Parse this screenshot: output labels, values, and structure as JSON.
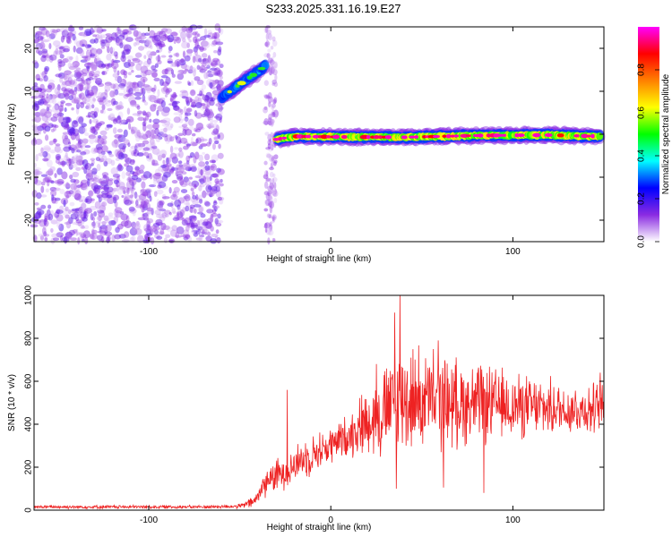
{
  "chart_data": [
    {
      "type": "heatmap",
      "title": "S233.2025.331.16.19.E27",
      "xlabel": "Height of straight line (km)",
      "ylabel": "Frequency (Hz)",
      "xlim": [
        -163,
        150
      ],
      "ylim": [
        -25,
        25
      ],
      "xticks": [
        -100,
        0,
        100
      ],
      "yticks": [
        -20,
        -10,
        0,
        10,
        20
      ],
      "colorbar": {
        "label": "Normalized spectral amplitude",
        "range": [
          0,
          1
        ],
        "ticks": [
          0.0,
          0.2,
          0.4,
          0.6,
          0.8
        ],
        "colormap": [
          "#ffffff",
          "#8a2be2",
          "#0000ff",
          "#00ffff",
          "#00ff00",
          "#ffff00",
          "#ff8000",
          "#ff0000",
          "#ff00ff"
        ]
      },
      "features": [
        {
          "name": "noise",
          "x_range": [
            -163,
            -60
          ],
          "freq_range": [
            -25,
            25
          ],
          "amplitude": 0.12
        },
        {
          "name": "rising track",
          "points": [
            [
              -60,
              8.5
            ],
            [
              -52,
              11
            ],
            [
              -46,
              12.8
            ],
            [
              -41,
              14.2
            ],
            [
              -36,
              16
            ]
          ],
          "amplitude": 0.45
        },
        {
          "name": "noise stripe",
          "x_range": [
            -36,
            -30
          ],
          "freq_range": [
            -25,
            25
          ],
          "amplitude": 0.1
        },
        {
          "name": "steady track",
          "points": [
            [
              -30,
              -1.2
            ],
            [
              -20,
              -0.5
            ],
            [
              0,
              -0.6
            ],
            [
              40,
              -0.7
            ],
            [
              80,
              -0.3
            ],
            [
              120,
              -0.2
            ],
            [
              148,
              -0.5
            ]
          ],
          "amplitude": 0.85
        }
      ]
    },
    {
      "type": "line",
      "xlabel": "Height of straight line (km)",
      "ylabel": "SNR (10 * v/v)",
      "xlim": [
        -163,
        150
      ],
      "ylim": [
        0,
        1000
      ],
      "xticks": [
        -100,
        0,
        100
      ],
      "yticks": [
        0,
        200,
        400,
        600,
        800,
        1000
      ],
      "color": "#ee2222",
      "envelope": {
        "x": [
          -163,
          -70,
          -50,
          -42,
          -35,
          -25,
          -15,
          0,
          10,
          20,
          30,
          40,
          55,
          70,
          90,
          110,
          130,
          150
        ],
        "mean": [
          15,
          15,
          18,
          40,
          140,
          180,
          240,
          300,
          350,
          420,
          460,
          520,
          510,
          500,
          490,
          480,
          470,
          470
        ],
        "spread": [
          8,
          8,
          10,
          30,
          70,
          80,
          90,
          90,
          100,
          160,
          220,
          250,
          230,
          200,
          170,
          140,
          120,
          120
        ]
      },
      "peaks": [
        {
          "x": 38,
          "y": 1000
        },
        {
          "x": 35,
          "y": 920
        },
        {
          "x": 59,
          "y": 790
        },
        {
          "x": 25,
          "y": 680
        },
        {
          "x": 148,
          "y": 640
        },
        {
          "x": -24,
          "y": 560
        },
        {
          "x": 36,
          "y": 100
        },
        {
          "x": 62,
          "y": 105
        },
        {
          "x": 84,
          "y": 80
        }
      ]
    }
  ]
}
